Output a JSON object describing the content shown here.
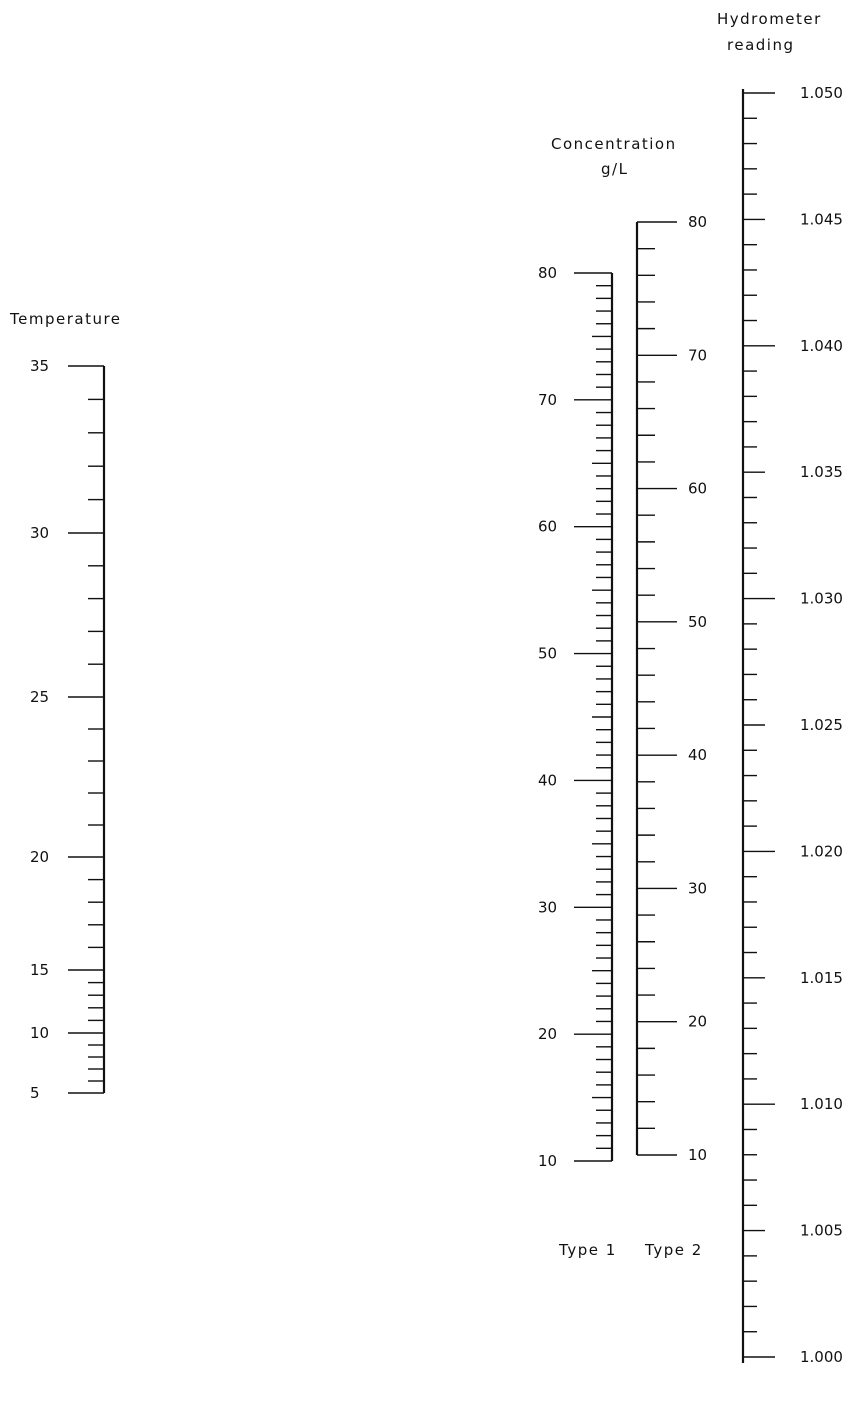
{
  "chart_data": {
    "type": "nomogram",
    "scales": [
      {
        "id": "temperature",
        "title": "Temperature",
        "labels": [
          "35",
          "30",
          "25",
          "20",
          "15",
          "10",
          "5"
        ],
        "range": [
          5,
          35
        ],
        "labelled_values": [
          35,
          30,
          25,
          20,
          15,
          10,
          5
        ]
      },
      {
        "id": "type1",
        "title": "Type 1",
        "labels": [
          "80",
          "70",
          "60",
          "50",
          "40",
          "30",
          "20",
          "10"
        ],
        "range": [
          10,
          80
        ],
        "labelled_values": [
          80,
          70,
          60,
          50,
          40,
          30,
          20,
          10
        ],
        "minor_step": 1
      },
      {
        "id": "type2",
        "title": "Type 2",
        "labels": [
          "80",
          "70",
          "60",
          "50",
          "40",
          "30",
          "20",
          "10"
        ],
        "range": [
          10,
          80
        ],
        "labelled_values": [
          80,
          70,
          60,
          50,
          40,
          30,
          20,
          10
        ],
        "minor_step": 2
      },
      {
        "id": "hydrometer",
        "title_lines": [
          "Hydrometer",
          "reading"
        ],
        "labels": [
          "1.050",
          "1.045",
          "1.040",
          "1.035",
          "1.030",
          "1.025",
          "1.020",
          "1.015",
          "1.010",
          "1.005",
          "1.000"
        ],
        "range": [
          1.0,
          1.05
        ],
        "labelled_values": [
          1.05,
          1.045,
          1.04,
          1.035,
          1.03,
          1.025,
          1.02,
          1.015,
          1.01,
          1.005,
          1.0
        ],
        "minor_step": 0.001
      }
    ],
    "concentration_title_lines": [
      "Concentration",
      "g/L"
    ]
  }
}
